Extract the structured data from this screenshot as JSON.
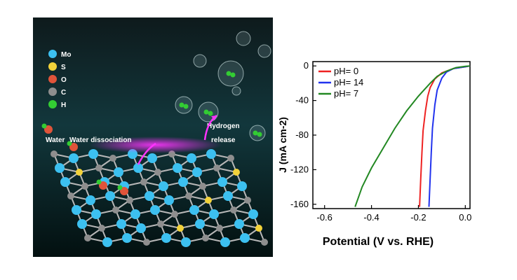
{
  "illustration": {
    "legend": [
      {
        "label": "Mo",
        "color": "#3cc0f0"
      },
      {
        "label": "S",
        "color": "#f2d23a"
      },
      {
        "label": "O",
        "color": "#e0543a"
      },
      {
        "label": "C",
        "color": "#8e8e8e"
      },
      {
        "label": "H",
        "color": "#33cc33"
      }
    ],
    "labels": {
      "water": "Water",
      "water_dissociation": "Water dissociation",
      "hydrogen": "Hydrogen",
      "release": "release"
    }
  },
  "chart_data": {
    "type": "line",
    "xlabel": "Potential (V vs. RHE)",
    "ylabel": "J (mA cm-2)",
    "xlim": [
      -0.65,
      0.02
    ],
    "ylim": [
      -165,
      5
    ],
    "xticks": [
      -0.6,
      -0.4,
      -0.2,
      0.0
    ],
    "xtick_labels": [
      "-0.6",
      "-0.4",
      "-0.2",
      "0.0"
    ],
    "yticks": [
      0,
      -40,
      -80,
      -120,
      -160
    ],
    "ytick_labels": [
      "0",
      "-40",
      "-80",
      "-120",
      "-160"
    ],
    "legend_position": "top-left",
    "series": [
      {
        "name": "pH= 0",
        "color": "#ee2222",
        "x": [
          -0.195,
          -0.19,
          -0.185,
          -0.18,
          -0.17,
          -0.16,
          -0.15,
          -0.13,
          -0.1,
          -0.05,
          0.0,
          0.02
        ],
        "y": [
          -163,
          -130,
          -100,
          -75,
          -52,
          -35,
          -25,
          -15,
          -8,
          -3,
          -1,
          0
        ]
      },
      {
        "name": "pH= 14",
        "color": "#2233ee",
        "x": [
          -0.155,
          -0.15,
          -0.145,
          -0.14,
          -0.13,
          -0.12,
          -0.1,
          -0.08,
          -0.05,
          0.0,
          0.02
        ],
        "y": [
          -163,
          -130,
          -100,
          -72,
          -45,
          -28,
          -14,
          -7,
          -3,
          -1,
          0
        ]
      },
      {
        "name": "pH= 7",
        "color": "#228822",
        "x": [
          -0.47,
          -0.44,
          -0.4,
          -0.35,
          -0.3,
          -0.25,
          -0.2,
          -0.15,
          -0.12,
          -0.08,
          -0.04,
          0.0,
          0.02
        ],
        "y": [
          -163,
          -140,
          -118,
          -95,
          -72,
          -52,
          -35,
          -20,
          -12,
          -6,
          -2,
          -0.5,
          0
        ]
      }
    ]
  }
}
